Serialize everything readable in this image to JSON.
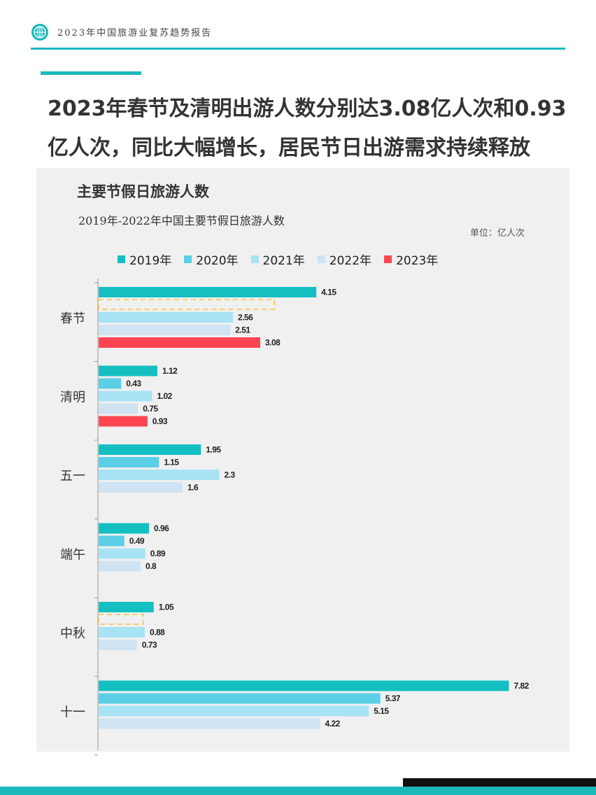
{
  "header": {
    "report_title": "2023年中国旅游业复苏趋势报告",
    "logo_icon": "globe-icon"
  },
  "headline": "2023年春节及清明出游人数分别达3.08亿人次和0.93亿人次，同比大幅增长，居民节日出游需求持续释放",
  "colors": {
    "accent": "#1cb8bc",
    "2019": "#14bfc2",
    "2020": "#5acfe6",
    "2021": "#a8e3f5",
    "2022": "#cfe3f2",
    "2023": "#ff4452",
    "missing_outline": "#f5c242"
  },
  "chart_data": {
    "type": "bar",
    "orientation": "horizontal",
    "title": "主要节假日旅游人数",
    "subtitle": "2019年-2022年中国主要节假日旅游人数",
    "unit": "单位：亿人次",
    "categories": [
      "春节",
      "清明",
      "五一",
      "端午",
      "中秋",
      "十一"
    ],
    "series": [
      {
        "name": "2019年",
        "values": [
          4.15,
          1.12,
          1.95,
          0.96,
          1.05,
          7.82
        ]
      },
      {
        "name": "2020年",
        "values": [
          null,
          0.43,
          1.15,
          0.49,
          null,
          5.37
        ]
      },
      {
        "name": "2021年",
        "values": [
          2.56,
          1.02,
          2.3,
          0.89,
          0.88,
          5.15
        ]
      },
      {
        "name": "2022年",
        "values": [
          2.51,
          0.75,
          1.6,
          0.8,
          0.73,
          4.22
        ]
      },
      {
        "name": "2023年",
        "values": [
          3.08,
          0.93,
          null,
          null,
          null,
          null
        ]
      }
    ],
    "missing_placeholders": [
      {
        "category": "春节",
        "series": "2020年",
        "estimated_value": 3.35
      },
      {
        "category": "中秋",
        "series": "2020年",
        "estimated_value": 0.85
      }
    ],
    "legend_position": "top",
    "grid": false,
    "xlim": [
      0,
      8.4
    ]
  }
}
